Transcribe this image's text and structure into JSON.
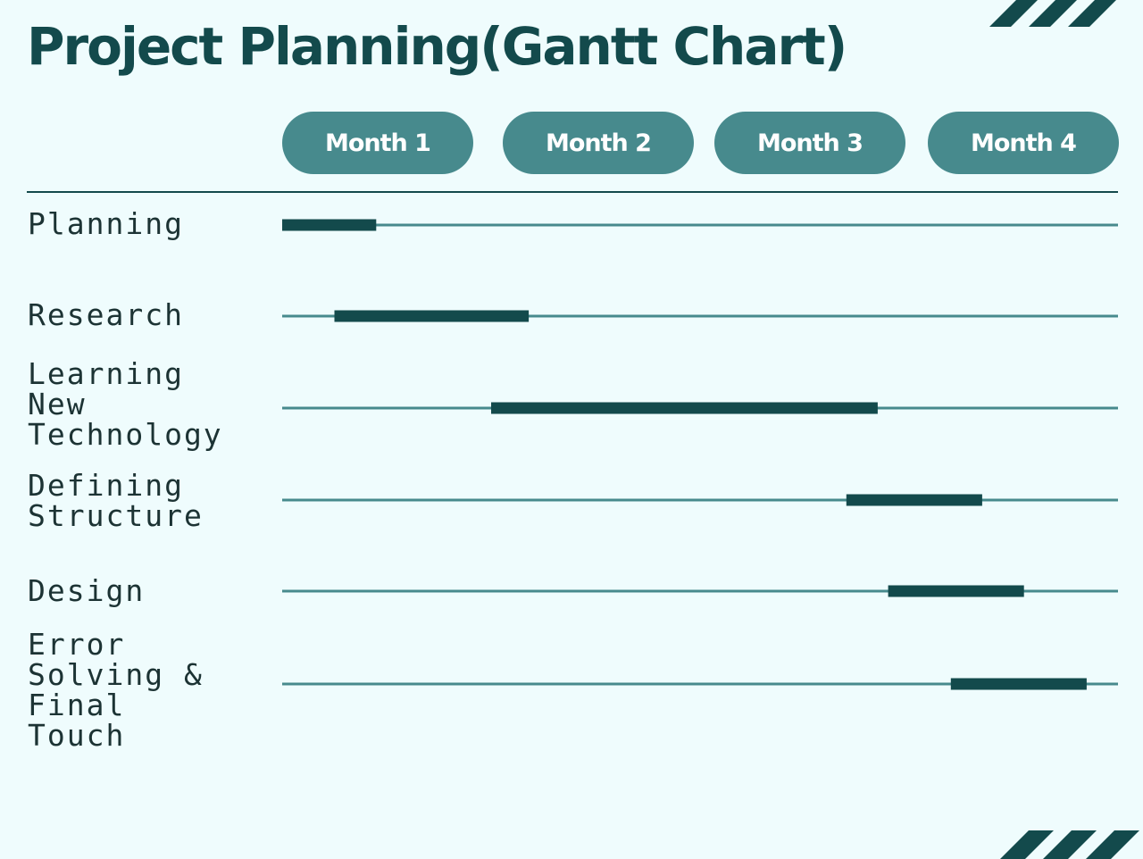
{
  "title": "Project Planning(Gantt Chart)",
  "colors": {
    "background": "#effcfd",
    "primary": "#134a4c",
    "pill": "#478a8d",
    "track": "#478a8d",
    "bar": "#134a4c",
    "label": "#1c3334"
  },
  "decorations": [
    "diagonal-stripes-top-right",
    "diagonal-stripes-bottom-right"
  ],
  "chart_data": {
    "type": "gantt",
    "title": "Project Planning(Gantt Chart)",
    "periods": [
      "Month 1",
      "Month 2",
      "Month 3",
      "Month 4"
    ],
    "time_range": [
      0,
      4
    ],
    "units": "months",
    "tasks": [
      {
        "label": "Planning",
        "start": 0.0,
        "end": 0.45
      },
      {
        "label": "Research",
        "start": 0.25,
        "end": 1.18
      },
      {
        "label": "Learning\nNew\nTechnology",
        "start": 1.0,
        "end": 2.85
      },
      {
        "label": "Defining\nStructure",
        "start": 2.7,
        "end": 3.35
      },
      {
        "label": "Design",
        "start": 2.9,
        "end": 3.55
      },
      {
        "label": "Error\nSolving &\nFinal\nTouch",
        "start": 3.2,
        "end": 3.85
      }
    ]
  }
}
